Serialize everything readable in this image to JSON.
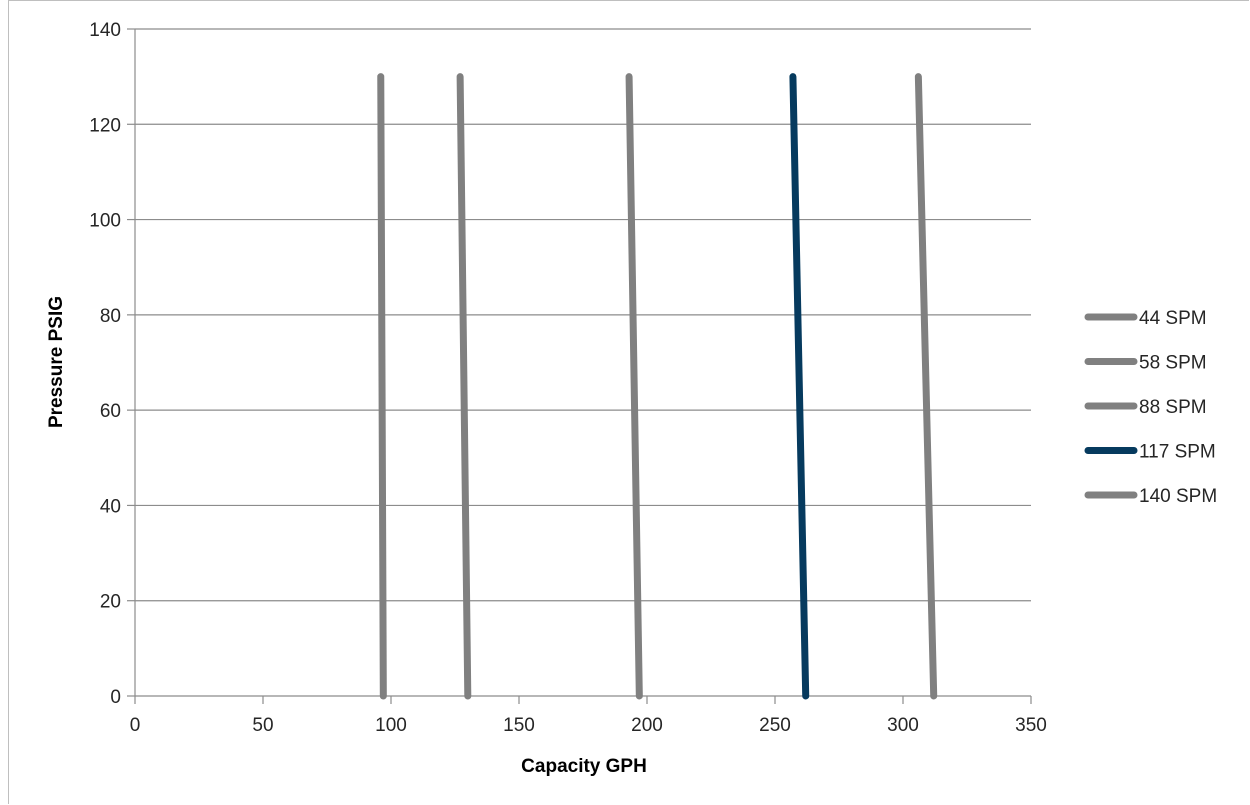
{
  "chart_data": {
    "type": "line",
    "title": "",
    "xlabel": "Capacity GPH",
    "ylabel": "Pressure PSIG",
    "xlim": [
      0,
      350
    ],
    "ylim": [
      0,
      140
    ],
    "xticks": [
      0,
      50,
      100,
      150,
      200,
      250,
      300,
      350
    ],
    "yticks": [
      0,
      20,
      40,
      60,
      80,
      100,
      120,
      140
    ],
    "grid": "horizontal",
    "legend_position": "right",
    "series": [
      {
        "name": "44 SPM",
        "color": "#808080",
        "x": [
          97,
          96
        ],
        "y": [
          0,
          130
        ]
      },
      {
        "name": "58 SPM",
        "color": "#808080",
        "x": [
          130,
          127
        ],
        "y": [
          0,
          130
        ]
      },
      {
        "name": "88 SPM",
        "color": "#808080",
        "x": [
          197,
          193
        ],
        "y": [
          0,
          130
        ]
      },
      {
        "name": "117 SPM",
        "color": "#063a5e",
        "x": [
          262,
          257
        ],
        "y": [
          0,
          130
        ]
      },
      {
        "name": "140 SPM",
        "color": "#808080",
        "x": [
          312,
          306
        ],
        "y": [
          0,
          130
        ]
      }
    ]
  }
}
